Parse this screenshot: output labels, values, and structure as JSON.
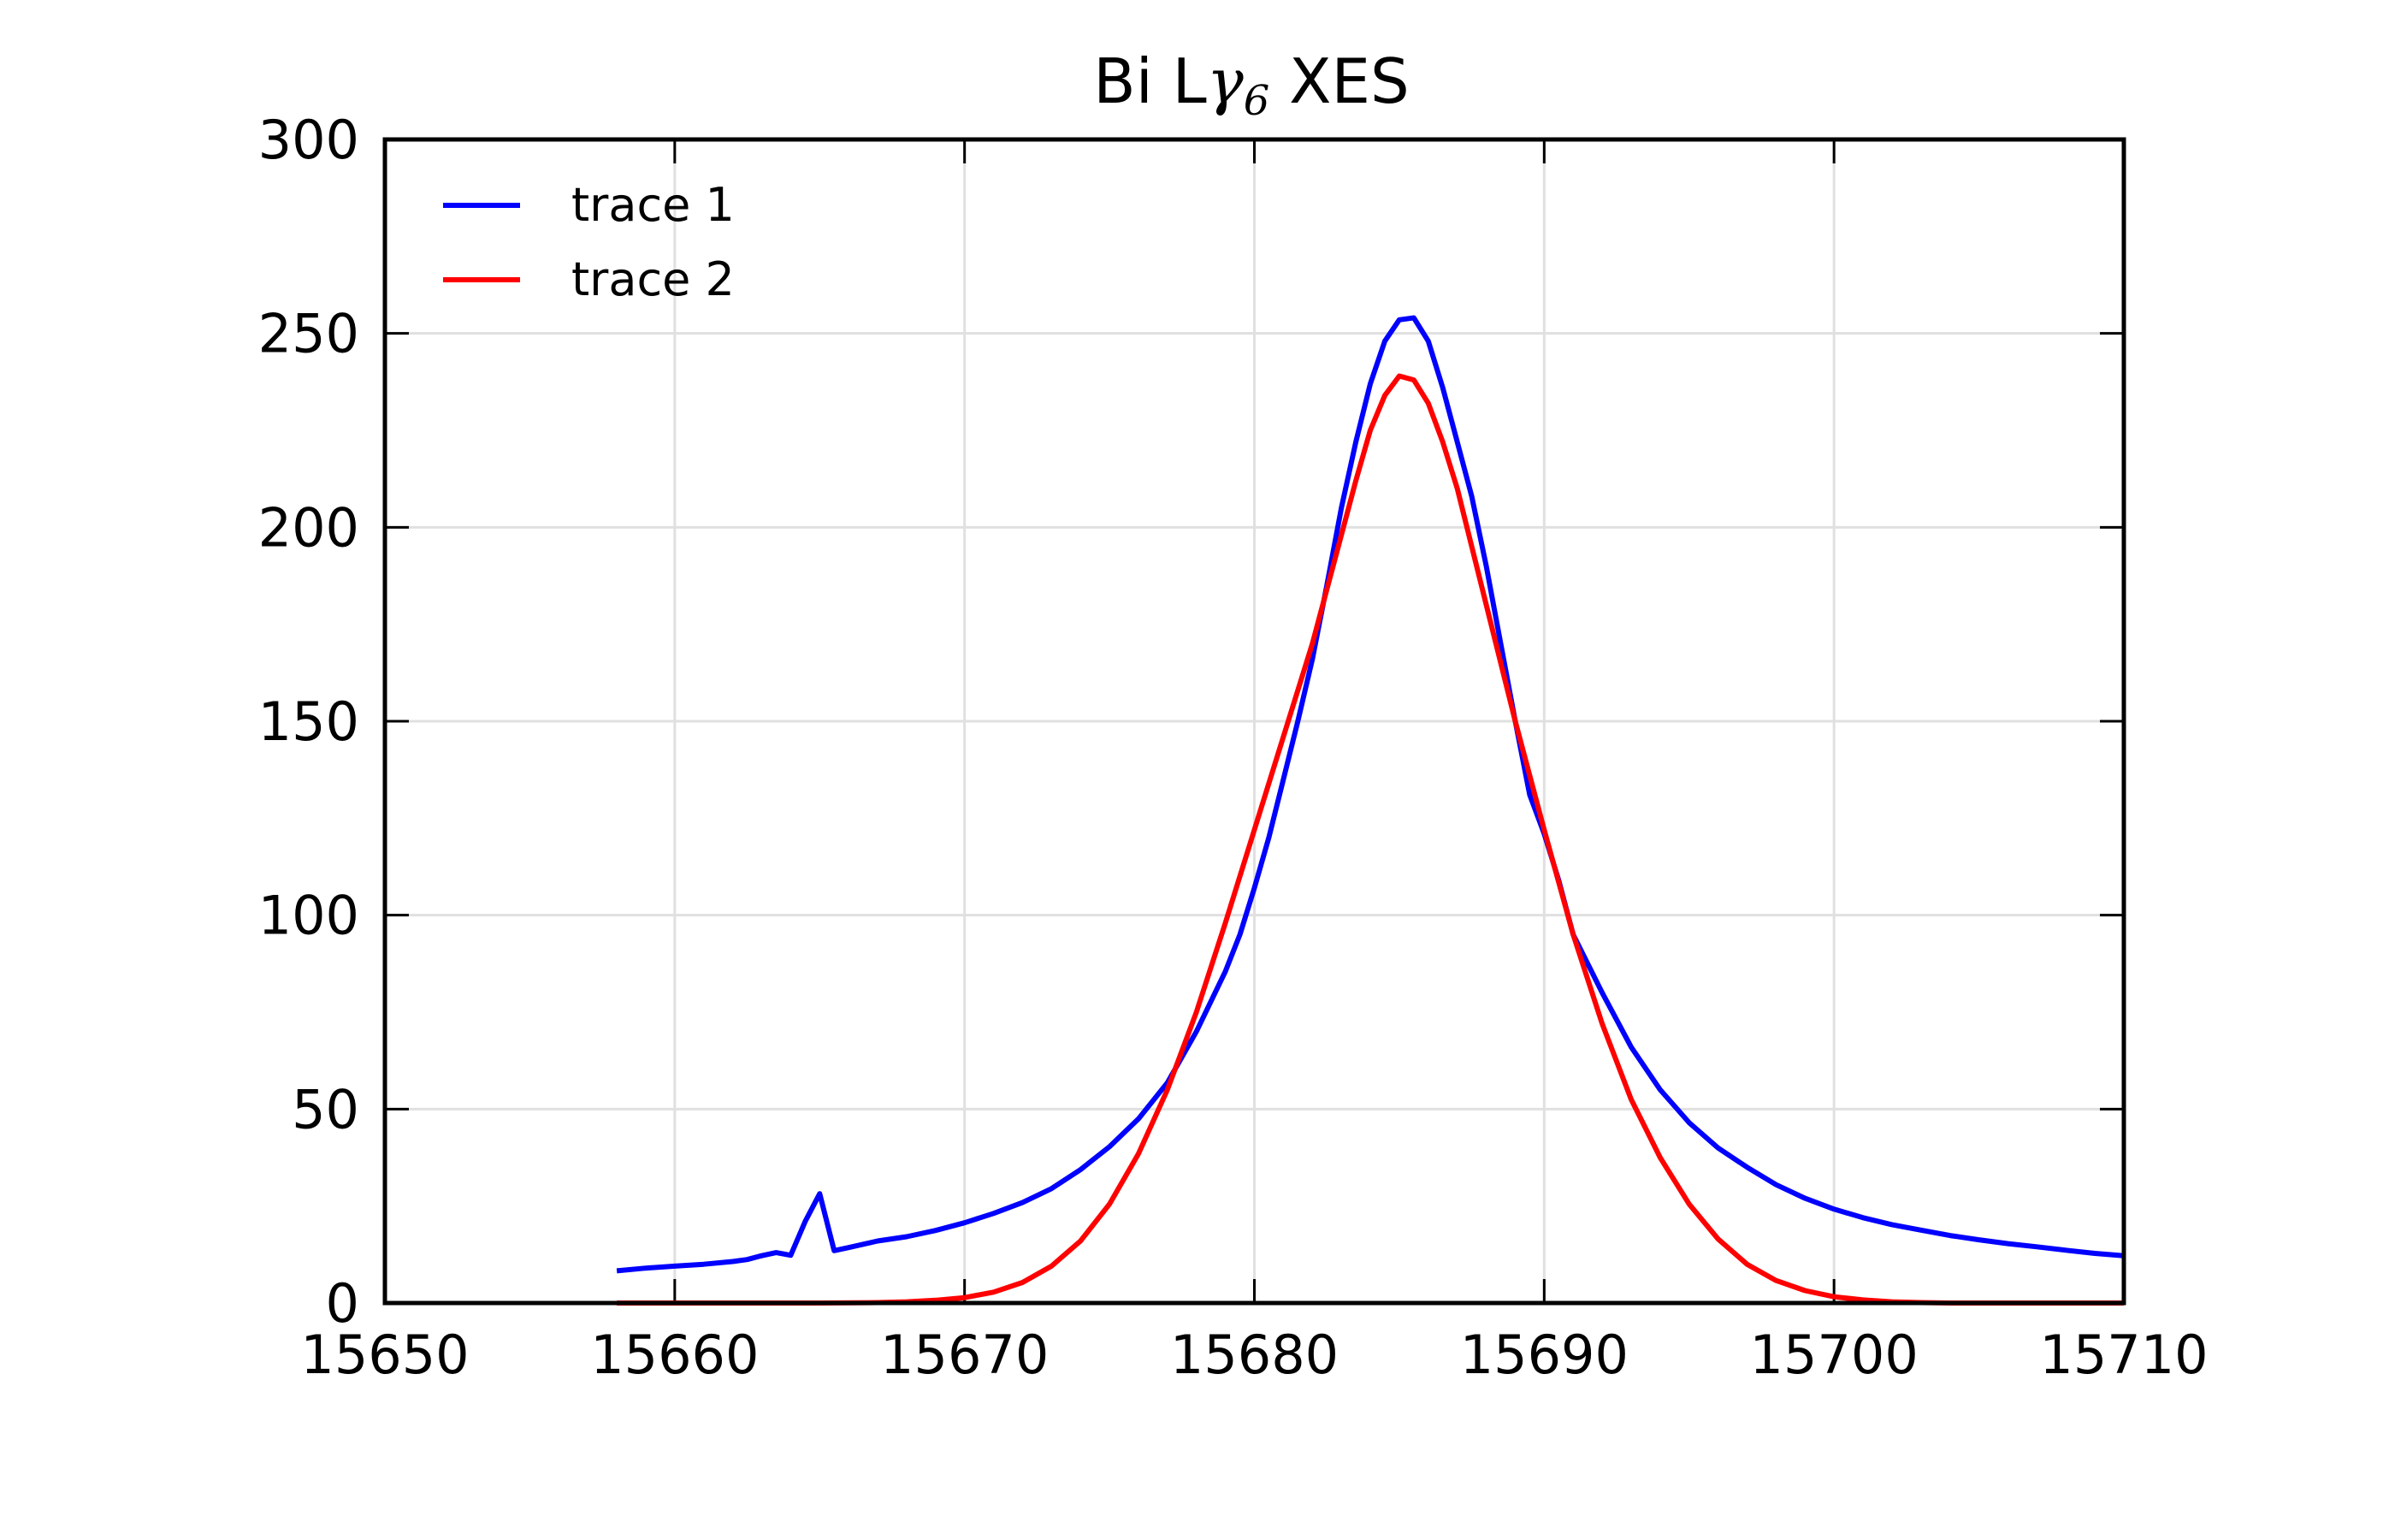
{
  "chart_data": {
    "type": "line",
    "title": {
      "prefix": "Bi L",
      "symbol": "γ",
      "subscript": "6",
      "suffix": " XES"
    },
    "xlabel": "",
    "ylabel": "",
    "xlim": [
      15650,
      15710
    ],
    "ylim": [
      0,
      300
    ],
    "x_ticks": [
      15650,
      15660,
      15670,
      15680,
      15690,
      15700,
      15710
    ],
    "y_ticks": [
      0,
      50,
      100,
      150,
      200,
      250,
      300
    ],
    "grid": true,
    "legend_position": "top-left",
    "series": [
      {
        "name": "trace 1",
        "color": "#0000ff",
        "points": [
          [
            15658.0,
            8.3
          ],
          [
            15659.0,
            9.0
          ],
          [
            15660.0,
            9.5
          ],
          [
            15661.0,
            10.0
          ],
          [
            15662.0,
            10.7
          ],
          [
            15662.5,
            11.2
          ],
          [
            15663.0,
            12.2
          ],
          [
            15663.5,
            13.0
          ],
          [
            15664.0,
            12.3
          ],
          [
            15664.5,
            21.0
          ],
          [
            15665.0,
            28.2
          ],
          [
            15665.5,
            13.5
          ],
          [
            15666.0,
            14.3
          ],
          [
            15667.0,
            16.0
          ],
          [
            15668.0,
            17.1
          ],
          [
            15669.0,
            18.7
          ],
          [
            15670.0,
            20.7
          ],
          [
            15671.0,
            23.1
          ],
          [
            15672.0,
            25.9
          ],
          [
            15673.0,
            29.5
          ],
          [
            15674.0,
            34.4
          ],
          [
            15675.0,
            40.3
          ],
          [
            15676.0,
            47.5
          ],
          [
            15677.0,
            56.8
          ],
          [
            15678.0,
            70.0
          ],
          [
            15679.0,
            85.5
          ],
          [
            15679.5,
            95.0
          ],
          [
            15680.0,
            107.0
          ],
          [
            15680.5,
            120.0
          ],
          [
            15681.0,
            135.0
          ],
          [
            15681.5,
            150.0
          ],
          [
            15682.0,
            166.0
          ],
          [
            15682.5,
            185.0
          ],
          [
            15683.0,
            205.0
          ],
          [
            15683.5,
            222.0
          ],
          [
            15684.0,
            237.0
          ],
          [
            15684.5,
            248.0
          ],
          [
            15685.0,
            253.5
          ],
          [
            15685.5,
            254.0
          ],
          [
            15686.0,
            248.0
          ],
          [
            15686.5,
            236.0
          ],
          [
            15687.0,
            222.0
          ],
          [
            15687.5,
            208.0
          ],
          [
            15688.0,
            190.0
          ],
          [
            15688.5,
            170.0
          ],
          [
            15689.0,
            150.0
          ],
          [
            15689.5,
            131.0
          ],
          [
            15690.0,
            121.0
          ],
          [
            15690.5,
            109.0
          ],
          [
            15691.0,
            95.0
          ],
          [
            15692.0,
            80.0
          ],
          [
            15693.0,
            66.0
          ],
          [
            15694.0,
            55.0
          ],
          [
            15695.0,
            46.5
          ],
          [
            15696.0,
            40.0
          ],
          [
            15697.0,
            35.0
          ],
          [
            15698.0,
            30.5
          ],
          [
            15699.0,
            27.0
          ],
          [
            15700.0,
            24.2
          ],
          [
            15701.0,
            22.0
          ],
          [
            15702.0,
            20.2
          ],
          [
            15703.0,
            18.8
          ],
          [
            15704.0,
            17.4
          ],
          [
            15705.0,
            16.3
          ],
          [
            15706.0,
            15.3
          ],
          [
            15707.0,
            14.5
          ],
          [
            15708.0,
            13.6
          ],
          [
            15709.0,
            12.8
          ],
          [
            15710.0,
            12.2
          ]
        ]
      },
      {
        "name": "trace 2",
        "color": "#ff0000",
        "points": [
          [
            15658.0,
            0.0
          ],
          [
            15662.0,
            0.0
          ],
          [
            15665.0,
            0.0
          ],
          [
            15667.0,
            0.1
          ],
          [
            15668.0,
            0.3
          ],
          [
            15669.0,
            0.7
          ],
          [
            15670.0,
            1.4
          ],
          [
            15671.0,
            2.8
          ],
          [
            15672.0,
            5.3
          ],
          [
            15673.0,
            9.5
          ],
          [
            15674.0,
            16.0
          ],
          [
            15675.0,
            25.5
          ],
          [
            15676.0,
            38.5
          ],
          [
            15677.0,
            55.0
          ],
          [
            15678.0,
            75.0
          ],
          [
            15679.0,
            98.0
          ],
          [
            15680.0,
            122.0
          ],
          [
            15681.0,
            146.0
          ],
          [
            15682.0,
            170.0
          ],
          [
            15683.0,
            198.0
          ],
          [
            15683.5,
            212.0
          ],
          [
            15684.0,
            225.0
          ],
          [
            15684.5,
            234.0
          ],
          [
            15685.0,
            239.0
          ],
          [
            15685.5,
            238.0
          ],
          [
            15686.0,
            232.0
          ],
          [
            15686.5,
            222.0
          ],
          [
            15687.0,
            210.0
          ],
          [
            15688.0,
            180.0
          ],
          [
            15689.0,
            150.0
          ],
          [
            15690.0,
            122.0
          ],
          [
            15691.0,
            95.0
          ],
          [
            15692.0,
            72.0
          ],
          [
            15693.0,
            52.5
          ],
          [
            15694.0,
            37.5
          ],
          [
            15695.0,
            25.5
          ],
          [
            15696.0,
            16.5
          ],
          [
            15697.0,
            10.0
          ],
          [
            15698.0,
            5.8
          ],
          [
            15699.0,
            3.2
          ],
          [
            15700.0,
            1.6
          ],
          [
            15701.0,
            0.8
          ],
          [
            15702.0,
            0.3
          ],
          [
            15703.0,
            0.1
          ],
          [
            15704.0,
            0.0
          ],
          [
            15710.0,
            0.0
          ]
        ]
      }
    ]
  }
}
